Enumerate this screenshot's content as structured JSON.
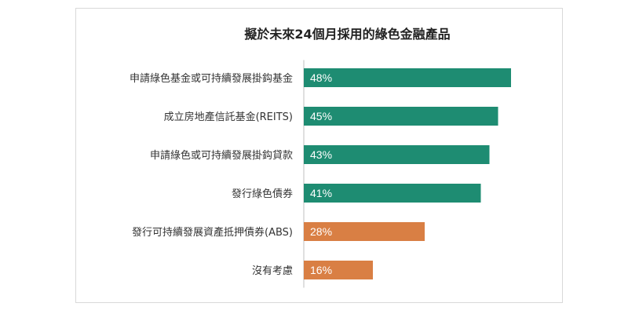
{
  "chart_data": {
    "type": "bar",
    "orientation": "horizontal",
    "title": "擬於未來24個月採用的綠色金融產品",
    "categories": [
      "申請綠色基金或可持續發展掛鈎基金",
      "成立房地產信託基金(REITS)",
      "申請綠色或可持續發展掛鈎貸款",
      "發行綠色債券",
      "發行可持續發展資產抵押債券(ABS)",
      "沒有考慮"
    ],
    "values": [
      48,
      45,
      43,
      41,
      28,
      16
    ],
    "value_labels": [
      "48%",
      "45%",
      "43%",
      "41%",
      "28%",
      "16%"
    ],
    "bar_colors": [
      "#1e8c72",
      "#1e8c72",
      "#1e8c72",
      "#1e8c72",
      "#d97f44",
      "#d97f44"
    ],
    "xlim": [
      0,
      100
    ],
    "grid": false,
    "legend": "none"
  }
}
